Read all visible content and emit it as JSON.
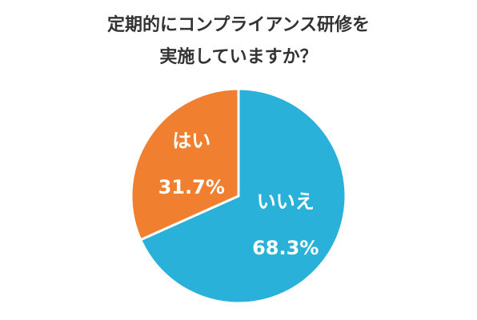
{
  "chart_data": {
    "type": "pie",
    "title_lines": [
      "定期的にコンプライアンス研修を",
      "実施していますか？"
    ],
    "categories": [
      "いいえ",
      "はい"
    ],
    "values": [
      68.3,
      31.7
    ],
    "value_labels": [
      "68.3%",
      "31.7%"
    ],
    "colors": [
      "#29b1d9",
      "#f08030"
    ]
  }
}
